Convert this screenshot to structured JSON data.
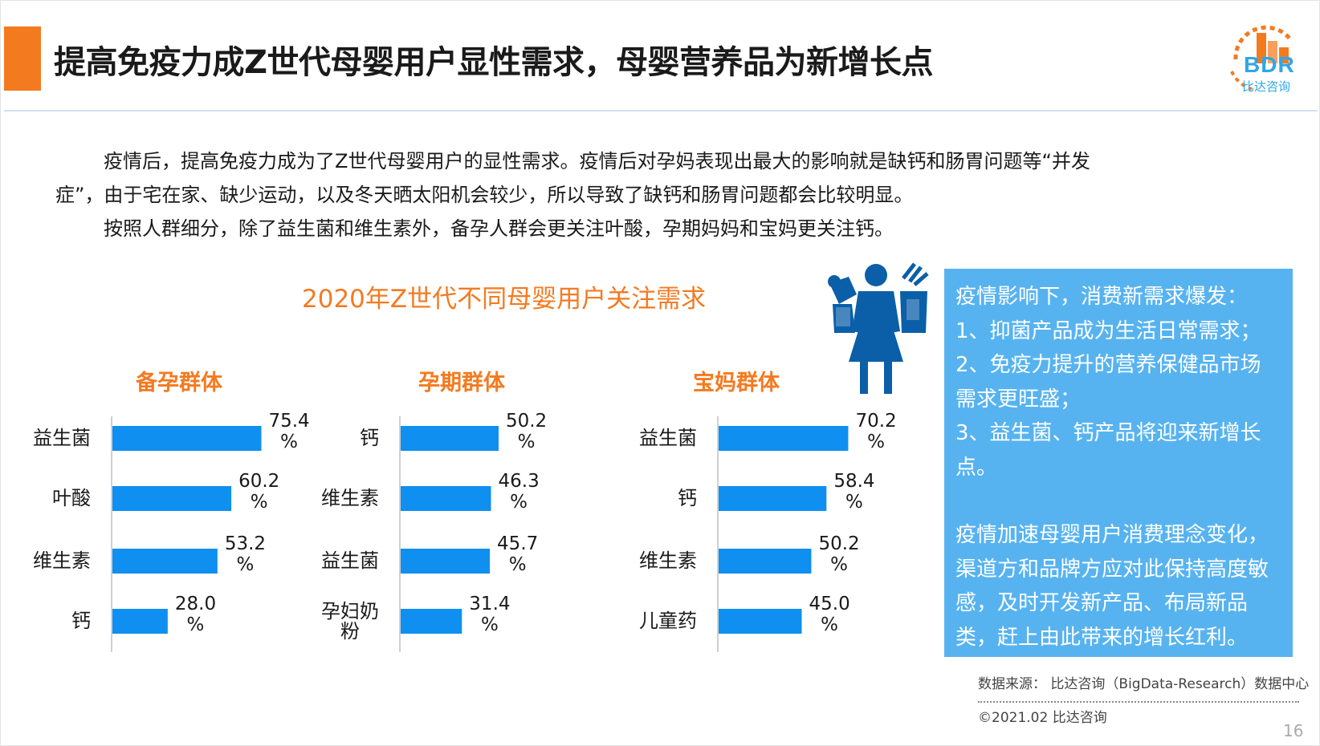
{
  "header": {
    "title": "提高免疫力成Z世代母婴用户显性需求，母婴营养品为新增长点",
    "logo_text": "BDR",
    "logo_sub": "比达咨询"
  },
  "intro": {
    "line1": "疫情后，提高免疫力成为了Z世代母婴用户的显性需求。疫情后对孕妈表现出最大的影响就是缺钙和肠胃问题等“并发",
    "line2": "症”，由于宅在家、缺少运动，以及冬天晒太阳机会较少，所以导致了缺钙和肠胃问题都会比较明显。",
    "line3": "按照人群细分，除了益生菌和维生素外，备孕人群会更关注叶酸，孕期妈妈和宝妈更关注钙。"
  },
  "chart_data": [
    {
      "type": "bar",
      "orientation": "horizontal",
      "title": "备孕群体",
      "categories": [
        "益生菌",
        "叶酸",
        "维生素",
        "钙"
      ],
      "values": [
        75.4,
        60.2,
        53.2,
        28.0
      ],
      "value_labels": [
        {
          "num": "75.4",
          "unit": "%"
        },
        {
          "num": "60.2",
          "unit": "%"
        },
        {
          "num": "53.2",
          "unit": "%"
        },
        {
          "num": "28.0",
          "unit": "%"
        }
      ],
      "category_lines": [
        [
          "益生菌"
        ],
        [
          "叶酸"
        ],
        [
          "维生素"
        ],
        [
          "钙"
        ]
      ]
    },
    {
      "type": "bar",
      "orientation": "horizontal",
      "title": "孕期群体",
      "categories": [
        "钙",
        "维生素",
        "益生菌",
        "孕妇奶粉"
      ],
      "values": [
        50.2,
        46.3,
        45.7,
        31.4
      ],
      "value_labels": [
        {
          "num": "50.2",
          "unit": "%"
        },
        {
          "num": "46.3",
          "unit": "%"
        },
        {
          "num": "45.7",
          "unit": "%"
        },
        {
          "num": "31.4",
          "unit": "%"
        }
      ],
      "category_lines": [
        [
          "钙"
        ],
        [
          "维生素"
        ],
        [
          "益生菌"
        ],
        [
          "孕妇奶",
          "粉"
        ]
      ]
    },
    {
      "type": "bar",
      "orientation": "horizontal",
      "title": "宝妈群体",
      "categories": [
        "益生菌",
        "钙",
        "维生素",
        "儿童药"
      ],
      "values": [
        70.2,
        58.4,
        50.2,
        45.0
      ],
      "value_labels": [
        {
          "num": "70.2",
          "unit": "%"
        },
        {
          "num": "58.4",
          "unit": "%"
        },
        {
          "num": "50.2",
          "unit": "%"
        },
        {
          "num": "45.0",
          "unit": "%"
        }
      ],
      "category_lines": [
        [
          "益生菌"
        ],
        [
          "钙"
        ],
        [
          "维生素"
        ],
        [
          "儿童药"
        ]
      ]
    }
  ],
  "chart_main_title": "2020年Z世代不同母婴用户关注需求",
  "colors": {
    "accent": "#f47a20",
    "bar": "#0f8ff0",
    "side_box": "#57b3f0",
    "figure": "#0a5fa8"
  },
  "side_box": {
    "p1": "疫情影响下，消费新需求爆发：",
    "p2": "1、抑菌产品成为生活日常需求；",
    "p3": "2、免疫力提升的营养保健品市场需求更旺盛；",
    "p4": "3、益生菌、钙产品将迎来新增长点。",
    "p5": "疫情加速母婴用户消费理念变化，渠道方和品牌方应对此保持高度敏感，及时开发新产品、布局新品类，赶上由此带来的增长红利。"
  },
  "footer": {
    "source": "数据来源： 比达咨询（BigData-Research）数据中心",
    "copyright": "©2021.02  比达咨询",
    "page": "16"
  },
  "icons": {
    "figure": "woman-holding-baby-and-shopping-bags-icon",
    "logo": "bdr-logo-icon"
  }
}
